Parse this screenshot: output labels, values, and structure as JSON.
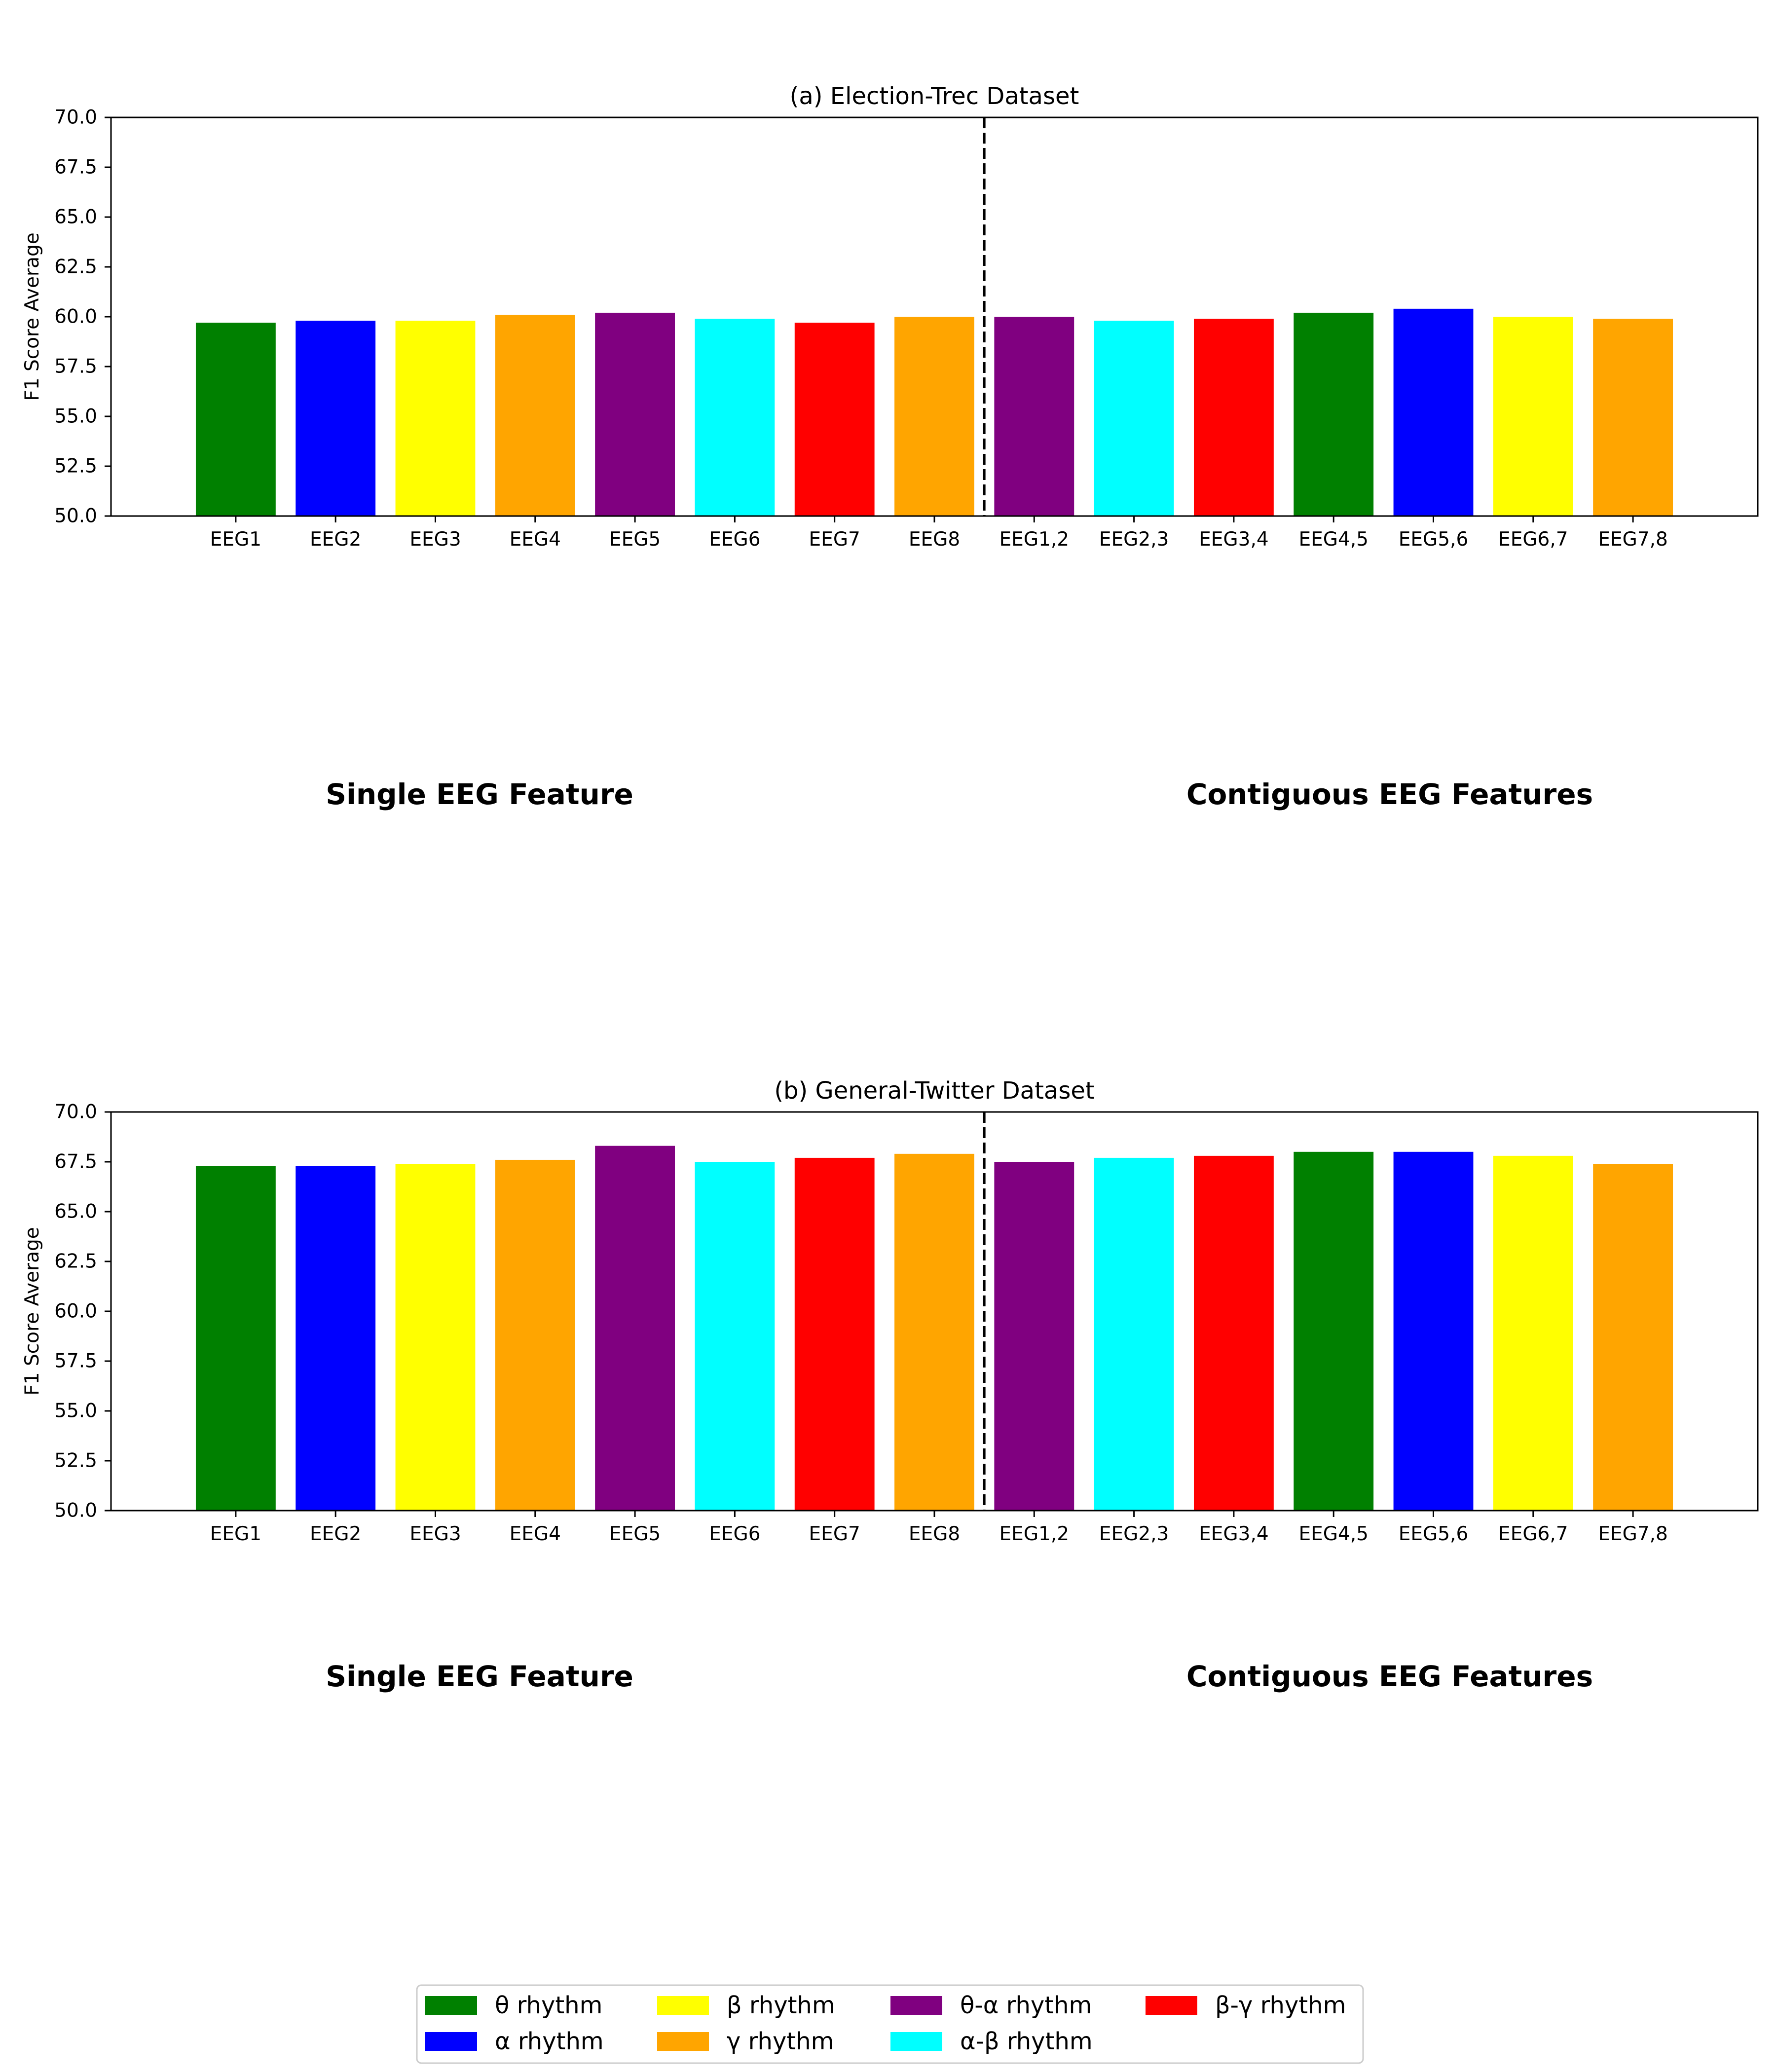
{
  "colors": {
    "theta": "#008000",
    "alpha": "#0000ff",
    "beta": "#ffff00",
    "gamma": "#ffa500",
    "theta_alpha": "#800080",
    "alpha_beta": "#00ffff",
    "beta_gamma": "#ff0000"
  },
  "legend": [
    {
      "label": "θ rhythm",
      "color": "#008000"
    },
    {
      "label": "α rhythm",
      "color": "#0000ff"
    },
    {
      "label": "β rhythm",
      "color": "#ffff00"
    },
    {
      "label": "γ rhythm",
      "color": "#ffa500"
    },
    {
      "label": "θ-α rhythm",
      "color": "#800080"
    },
    {
      "label": "α-β rhythm",
      "color": "#00ffff"
    },
    {
      "label": "β-γ rhythm",
      "color": "#ff0000"
    }
  ],
  "chart_data": [
    {
      "type": "bar",
      "title": "(a) Election-Trec Dataset",
      "xlabel": "",
      "ylabel": "F1 Score Average",
      "ylim": [
        50.0,
        70.0
      ],
      "yticks": [
        "50.0",
        "52.5",
        "55.0",
        "57.5",
        "60.0",
        "62.5",
        "65.0",
        "67.5",
        "70.0"
      ],
      "categories": [
        "EEG1",
        "EEG2",
        "EEG3",
        "EEG4",
        "EEG5",
        "EEG6",
        "EEG7",
        "EEG8",
        "EEG1,2",
        "EEG2,3",
        "EEG3,4",
        "EEG4,5",
        "EEG5,6",
        "EEG6,7",
        "EEG7,8"
      ],
      "values": [
        59.7,
        59.8,
        59.8,
        60.1,
        60.2,
        59.9,
        59.7,
        60.0,
        60.0,
        59.8,
        59.9,
        60.2,
        60.4,
        60.0,
        59.9
      ],
      "bar_colors": [
        "#008000",
        "#0000ff",
        "#ffff00",
        "#ffa500",
        "#800080",
        "#00ffff",
        "#ff0000",
        "#ffa500",
        "#800080",
        "#00ffff",
        "#ff0000",
        "#008000",
        "#0000ff",
        "#ffff00",
        "#ffa500"
      ],
      "divider_after_index": 7,
      "section_labels": [
        "Single EEG Feature",
        "Contiguous EEG Features"
      ],
      "grid": false
    },
    {
      "type": "bar",
      "title": "(b) General-Twitter Dataset",
      "xlabel": "",
      "ylabel": "F1 Score Average",
      "ylim": [
        50.0,
        70.0
      ],
      "yticks": [
        "50.0",
        "52.5",
        "55.0",
        "57.5",
        "60.0",
        "62.5",
        "65.0",
        "67.5",
        "70.0"
      ],
      "categories": [
        "EEG1",
        "EEG2",
        "EEG3",
        "EEG4",
        "EEG5",
        "EEG6",
        "EEG7",
        "EEG8",
        "EEG1,2",
        "EEG2,3",
        "EEG3,4",
        "EEG4,5",
        "EEG5,6",
        "EEG6,7",
        "EEG7,8"
      ],
      "values": [
        67.3,
        67.3,
        67.4,
        67.6,
        68.3,
        67.5,
        67.7,
        67.9,
        67.5,
        67.7,
        67.8,
        68.0,
        68.0,
        67.8,
        67.4
      ],
      "bar_colors": [
        "#008000",
        "#0000ff",
        "#ffff00",
        "#ffa500",
        "#800080",
        "#00ffff",
        "#ff0000",
        "#ffa500",
        "#800080",
        "#00ffff",
        "#ff0000",
        "#008000",
        "#0000ff",
        "#ffff00",
        "#ffa500"
      ],
      "divider_after_index": 7,
      "section_labels": [
        "Single EEG Feature",
        "Contiguous EEG Features"
      ],
      "grid": false
    }
  ]
}
